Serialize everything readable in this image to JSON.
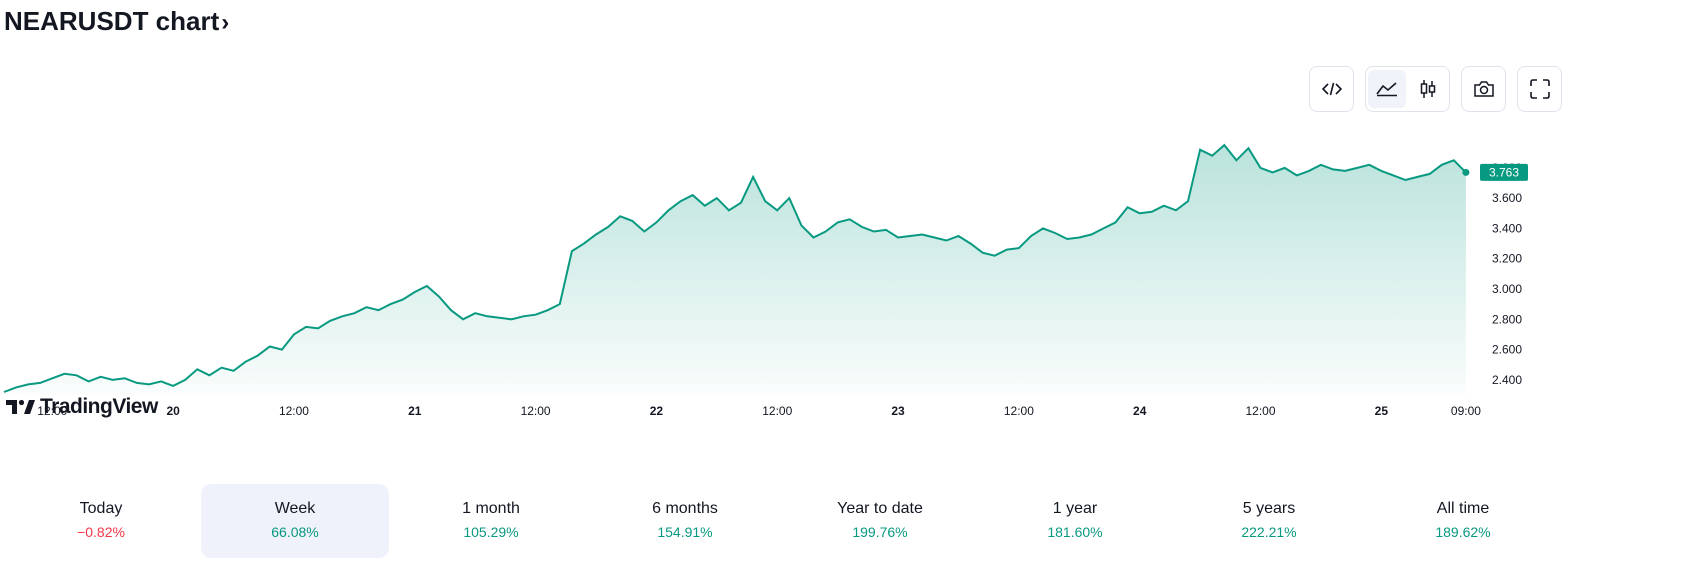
{
  "header": {
    "title": "NEARUSDT chart",
    "chevron": "›"
  },
  "toolbar": {
    "buttons": [
      {
        "name": "embed-code-icon"
      },
      {
        "name": "area-chart-icon",
        "active": true
      },
      {
        "name": "candlestick-icon"
      },
      {
        "name": "camera-icon"
      },
      {
        "name": "fullscreen-icon"
      }
    ]
  },
  "logo": {
    "text": "TradingView"
  },
  "colors": {
    "line": "#089981",
    "area_top": "#089981",
    "price_tag_bg": "#089981",
    "up": "#089981",
    "down": "#f23645"
  },
  "chart_data": {
    "type": "area",
    "symbol": "NEARUSDT",
    "last_price_label": "3.763",
    "yaxis": {
      "ticks": [
        2.4,
        2.6,
        2.8,
        3.0,
        3.2,
        3.4,
        3.6,
        3.8
      ],
      "tick_labels": [
        "2.400",
        "2.600",
        "2.800",
        "3.000",
        "3.200",
        "3.400",
        "3.600",
        "3.800"
      ],
      "ylim": [
        2.3,
        4.05
      ],
      "position": "right"
    },
    "xaxis": {
      "ticks": [
        {
          "x": 0.5,
          "label": "12:00",
          "bold": false
        },
        {
          "x": 1.0,
          "label": "20",
          "bold": true
        },
        {
          "x": 1.5,
          "label": "12:00",
          "bold": false
        },
        {
          "x": 2.0,
          "label": "21",
          "bold": true
        },
        {
          "x": 2.5,
          "label": "12:00",
          "bold": false
        },
        {
          "x": 3.0,
          "label": "22",
          "bold": true
        },
        {
          "x": 3.5,
          "label": "12:00",
          "bold": false
        },
        {
          "x": 4.0,
          "label": "23",
          "bold": true
        },
        {
          "x": 4.5,
          "label": "12:00",
          "bold": false
        },
        {
          "x": 5.0,
          "label": "24",
          "bold": true
        },
        {
          "x": 5.5,
          "label": "12:00",
          "bold": false
        },
        {
          "x": 6.0,
          "label": "25",
          "bold": true
        },
        {
          "x": 6.35,
          "label": "09:00",
          "bold": false
        }
      ],
      "xlim": [
        0.3,
        6.4
      ]
    },
    "grid": false,
    "series": [
      {
        "x": [
          0.3,
          0.35,
          0.4,
          0.45,
          0.5,
          0.55,
          0.6,
          0.65,
          0.7,
          0.75,
          0.8,
          0.85,
          0.9,
          0.95,
          1.0,
          1.05,
          1.1,
          1.15,
          1.2,
          1.25,
          1.3,
          1.35,
          1.4,
          1.45,
          1.5,
          1.55,
          1.6,
          1.65,
          1.7,
          1.75,
          1.8,
          1.85,
          1.9,
          1.95,
          2.0,
          2.05,
          2.1,
          2.15,
          2.2,
          2.25,
          2.3,
          2.35,
          2.4,
          2.45,
          2.5,
          2.55,
          2.6,
          2.65,
          2.7,
          2.75,
          2.8,
          2.85,
          2.9,
          2.95,
          3.0,
          3.05,
          3.1,
          3.15,
          3.2,
          3.25,
          3.3,
          3.35,
          3.4,
          3.45,
          3.5,
          3.55,
          3.6,
          3.65,
          3.7,
          3.75,
          3.8,
          3.85,
          3.9,
          3.95,
          4.0,
          4.05,
          4.1,
          4.15,
          4.2,
          4.25,
          4.3,
          4.35,
          4.4,
          4.45,
          4.5,
          4.55,
          4.6,
          4.65,
          4.7,
          4.75,
          4.8,
          4.85,
          4.9,
          4.95,
          5.0,
          5.05,
          5.1,
          5.15,
          5.2,
          5.25,
          5.3,
          5.35,
          5.4,
          5.45,
          5.5,
          5.55,
          5.6,
          5.65,
          5.7,
          5.75,
          5.8,
          5.85,
          5.9,
          5.95,
          6.0,
          6.05,
          6.1,
          6.15,
          6.2,
          6.25,
          6.3,
          6.35
        ],
        "y": [
          2.32,
          2.35,
          2.37,
          2.38,
          2.41,
          2.44,
          2.43,
          2.39,
          2.42,
          2.4,
          2.41,
          2.38,
          2.37,
          2.39,
          2.36,
          2.4,
          2.47,
          2.43,
          2.48,
          2.46,
          2.52,
          2.56,
          2.62,
          2.6,
          2.7,
          2.75,
          2.74,
          2.79,
          2.82,
          2.84,
          2.88,
          2.86,
          2.9,
          2.93,
          2.98,
          3.02,
          2.95,
          2.86,
          2.8,
          2.84,
          2.82,
          2.81,
          2.8,
          2.82,
          2.83,
          2.86,
          2.9,
          3.25,
          3.3,
          3.36,
          3.41,
          3.48,
          3.45,
          3.38,
          3.44,
          3.52,
          3.58,
          3.62,
          3.55,
          3.6,
          3.52,
          3.57,
          3.74,
          3.58,
          3.52,
          3.6,
          3.42,
          3.34,
          3.38,
          3.44,
          3.46,
          3.41,
          3.38,
          3.39,
          3.34,
          3.35,
          3.36,
          3.34,
          3.32,
          3.35,
          3.3,
          3.24,
          3.22,
          3.26,
          3.27,
          3.35,
          3.4,
          3.37,
          3.33,
          3.34,
          3.36,
          3.4,
          3.44,
          3.54,
          3.5,
          3.51,
          3.55,
          3.52,
          3.58,
          3.92,
          3.88,
          3.95,
          3.85,
          3.93,
          3.8,
          3.77,
          3.8,
          3.75,
          3.78,
          3.82,
          3.79,
          3.78,
          3.8,
          3.82,
          3.78,
          3.75,
          3.72,
          3.74,
          3.76,
          3.82,
          3.85,
          3.77
        ]
      }
    ]
  },
  "periods": [
    {
      "label": "Today",
      "value": "−0.82%",
      "direction": "down",
      "active": false
    },
    {
      "label": "Week",
      "value": "66.08%",
      "direction": "up",
      "active": true
    },
    {
      "label": "1 month",
      "value": "105.29%",
      "direction": "up",
      "active": false
    },
    {
      "label": "6 months",
      "value": "154.91%",
      "direction": "up",
      "active": false
    },
    {
      "label": "Year to date",
      "value": "199.76%",
      "direction": "up",
      "active": false
    },
    {
      "label": "1 year",
      "value": "181.60%",
      "direction": "up",
      "active": false
    },
    {
      "label": "5 years",
      "value": "222.21%",
      "direction": "up",
      "active": false
    },
    {
      "label": "All time",
      "value": "189.62%",
      "direction": "up",
      "active": false
    }
  ]
}
